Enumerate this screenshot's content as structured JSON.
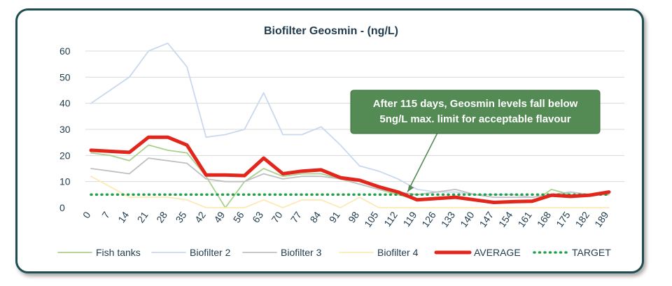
{
  "chart_data": {
    "type": "line",
    "title": "Biofilter Geosmin - (ng/L)",
    "xlabel": "",
    "ylabel": "",
    "ylim": [
      0,
      60
    ],
    "yticks": [
      0,
      10,
      20,
      30,
      40,
      50,
      60
    ],
    "grid": true,
    "legend_position": "bottom",
    "x": [
      0,
      7,
      14,
      21,
      28,
      35,
      42,
      49,
      56,
      63,
      70,
      77,
      84,
      91,
      98,
      105,
      112,
      119,
      126,
      133,
      140,
      147,
      154,
      161,
      168,
      175,
      182,
      189
    ],
    "series": [
      {
        "name": "Fish tanks",
        "color": "#a9d18e",
        "values": [
          21,
          20,
          18,
          24,
          22,
          21,
          12,
          0,
          10,
          15,
          12,
          13,
          13,
          11,
          9,
          7,
          5,
          3,
          4,
          4,
          3,
          2,
          2,
          2,
          7,
          5,
          5,
          6
        ]
      },
      {
        "name": "Biofilter 2",
        "color": "#c9d8ee",
        "values": [
          40,
          45,
          50,
          60,
          63,
          54,
          27,
          28,
          30,
          44,
          28,
          28,
          31,
          24,
          16,
          14,
          11,
          7,
          6,
          6,
          5,
          5,
          5,
          4,
          5,
          5,
          5,
          5
        ]
      },
      {
        "name": "Biofilter 3",
        "color": "#c0c0c0",
        "values": [
          15,
          14,
          13,
          19,
          18,
          17,
          11,
          10,
          10,
          13,
          11,
          12,
          12,
          11,
          9,
          7,
          6,
          5,
          6,
          7,
          5,
          4,
          4,
          4,
          5,
          6,
          5,
          5
        ]
      },
      {
        "name": "Biofilter 4",
        "color": "#fde9b3",
        "values": [
          12,
          8,
          4,
          4,
          4,
          3,
          0,
          0,
          0,
          3,
          0,
          3,
          3,
          0,
          4,
          0,
          0,
          0,
          0,
          0,
          0,
          0,
          0,
          0,
          0,
          0,
          0,
          0
        ]
      },
      {
        "name": "AVERAGE",
        "color": "#e3261b",
        "values": [
          22,
          21.6,
          21.2,
          27,
          27,
          24,
          12.5,
          12.5,
          12.3,
          19,
          13,
          14,
          14.5,
          11.5,
          10.5,
          8,
          6,
          3,
          3.5,
          4,
          3,
          2,
          2.3,
          2.5,
          4.8,
          4.3,
          4.8,
          6
        ]
      },
      {
        "name": "TARGET",
        "color": "#22a04b",
        "values": [
          5,
          5,
          5,
          5,
          5,
          5,
          5,
          5,
          5,
          5,
          5,
          5,
          5,
          5,
          5,
          5,
          5,
          5,
          5,
          5,
          5,
          5,
          5,
          5,
          5,
          5,
          5,
          5
        ]
      }
    ],
    "annotation": {
      "lines": [
        "After 115 days, Geosmin levels fall below",
        "5ng/L max. limit for acceptable flavour"
      ],
      "fill": "#548b54",
      "at_x": 115
    }
  }
}
